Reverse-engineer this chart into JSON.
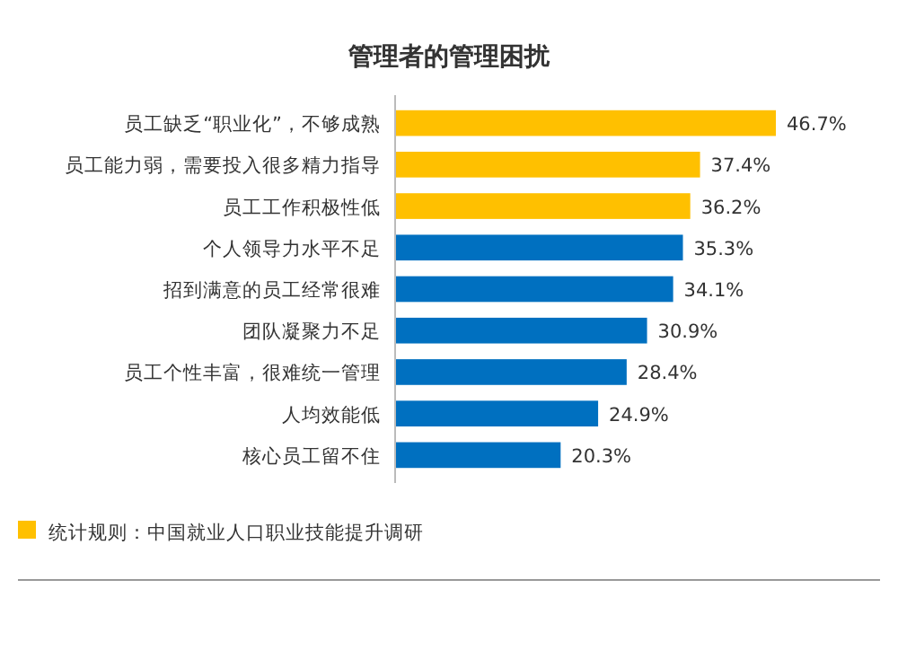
{
  "chart_data": {
    "type": "bar",
    "orientation": "horizontal",
    "title": "管理者的管理困扰",
    "categories": [
      "员工缺乏“职业化”，不够成熟",
      "员工能力弱，需要投入很多精力指导",
      "员工工作积极性低",
      "个人领导力水平不足",
      "招到满意的员工经常很难",
      "团队凝聚力不足",
      "员工个性丰富，很难统一管理",
      "人均效能低",
      "核心员工留不住"
    ],
    "values": [
      46.7,
      37.4,
      36.2,
      35.3,
      34.1,
      30.9,
      28.4,
      24.9,
      20.3
    ],
    "value_labels": [
      "46.7%",
      "37.4%",
      "36.2%",
      "35.3%",
      "34.1%",
      "30.9%",
      "28.4%",
      "24.9%",
      "20.3%"
    ],
    "colors": [
      "#ffc000",
      "#ffc000",
      "#ffc000",
      "#0070c0",
      "#0070c0",
      "#0070c0",
      "#0070c0",
      "#0070c0",
      "#0070c0"
    ],
    "relative": false,
    "annotations": [
      "统计规则：中国就业人口职业技能提升调研"
    ]
  }
}
